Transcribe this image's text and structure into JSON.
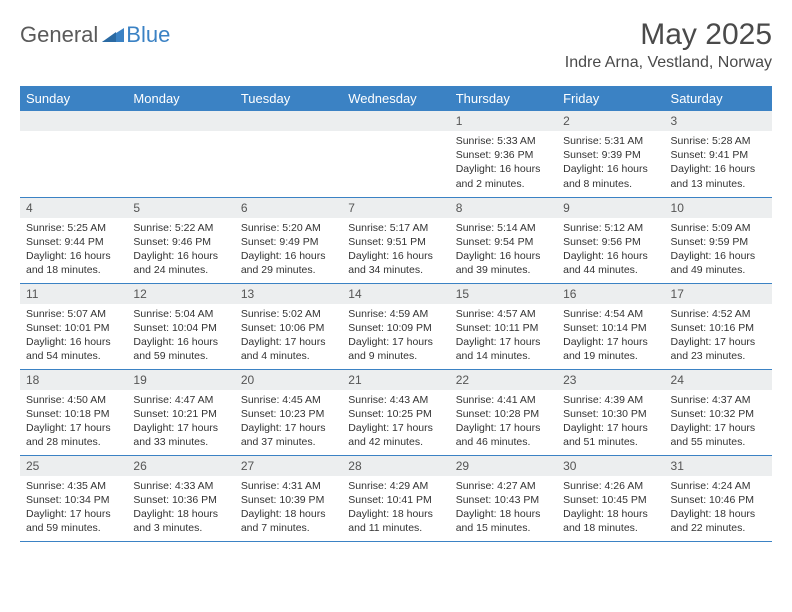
{
  "logo": {
    "part1": "General",
    "part2": "Blue"
  },
  "title": "May 2025",
  "location": "Indre Arna, Vestland, Norway",
  "colors": {
    "header_bg": "#3b82c4",
    "header_fg": "#ffffff",
    "daynum_bg": "#eceeef",
    "border": "#3b82c4",
    "logo_gray": "#5a5a5a",
    "logo_blue": "#3b82c4"
  },
  "weekdays": [
    "Sunday",
    "Monday",
    "Tuesday",
    "Wednesday",
    "Thursday",
    "Friday",
    "Saturday"
  ],
  "weeks": [
    [
      {
        "empty": true
      },
      {
        "empty": true
      },
      {
        "empty": true
      },
      {
        "empty": true
      },
      {
        "n": "1",
        "sr": "5:33 AM",
        "ss": "9:36 PM",
        "dl": "16 hours and 2 minutes."
      },
      {
        "n": "2",
        "sr": "5:31 AM",
        "ss": "9:39 PM",
        "dl": "16 hours and 8 minutes."
      },
      {
        "n": "3",
        "sr": "5:28 AM",
        "ss": "9:41 PM",
        "dl": "16 hours and 13 minutes."
      }
    ],
    [
      {
        "n": "4",
        "sr": "5:25 AM",
        "ss": "9:44 PM",
        "dl": "16 hours and 18 minutes."
      },
      {
        "n": "5",
        "sr": "5:22 AM",
        "ss": "9:46 PM",
        "dl": "16 hours and 24 minutes."
      },
      {
        "n": "6",
        "sr": "5:20 AM",
        "ss": "9:49 PM",
        "dl": "16 hours and 29 minutes."
      },
      {
        "n": "7",
        "sr": "5:17 AM",
        "ss": "9:51 PM",
        "dl": "16 hours and 34 minutes."
      },
      {
        "n": "8",
        "sr": "5:14 AM",
        "ss": "9:54 PM",
        "dl": "16 hours and 39 minutes."
      },
      {
        "n": "9",
        "sr": "5:12 AM",
        "ss": "9:56 PM",
        "dl": "16 hours and 44 minutes."
      },
      {
        "n": "10",
        "sr": "5:09 AM",
        "ss": "9:59 PM",
        "dl": "16 hours and 49 minutes."
      }
    ],
    [
      {
        "n": "11",
        "sr": "5:07 AM",
        "ss": "10:01 PM",
        "dl": "16 hours and 54 minutes."
      },
      {
        "n": "12",
        "sr": "5:04 AM",
        "ss": "10:04 PM",
        "dl": "16 hours and 59 minutes."
      },
      {
        "n": "13",
        "sr": "5:02 AM",
        "ss": "10:06 PM",
        "dl": "17 hours and 4 minutes."
      },
      {
        "n": "14",
        "sr": "4:59 AM",
        "ss": "10:09 PM",
        "dl": "17 hours and 9 minutes."
      },
      {
        "n": "15",
        "sr": "4:57 AM",
        "ss": "10:11 PM",
        "dl": "17 hours and 14 minutes."
      },
      {
        "n": "16",
        "sr": "4:54 AM",
        "ss": "10:14 PM",
        "dl": "17 hours and 19 minutes."
      },
      {
        "n": "17",
        "sr": "4:52 AM",
        "ss": "10:16 PM",
        "dl": "17 hours and 23 minutes."
      }
    ],
    [
      {
        "n": "18",
        "sr": "4:50 AM",
        "ss": "10:18 PM",
        "dl": "17 hours and 28 minutes."
      },
      {
        "n": "19",
        "sr": "4:47 AM",
        "ss": "10:21 PM",
        "dl": "17 hours and 33 minutes."
      },
      {
        "n": "20",
        "sr": "4:45 AM",
        "ss": "10:23 PM",
        "dl": "17 hours and 37 minutes."
      },
      {
        "n": "21",
        "sr": "4:43 AM",
        "ss": "10:25 PM",
        "dl": "17 hours and 42 minutes."
      },
      {
        "n": "22",
        "sr": "4:41 AM",
        "ss": "10:28 PM",
        "dl": "17 hours and 46 minutes."
      },
      {
        "n": "23",
        "sr": "4:39 AM",
        "ss": "10:30 PM",
        "dl": "17 hours and 51 minutes."
      },
      {
        "n": "24",
        "sr": "4:37 AM",
        "ss": "10:32 PM",
        "dl": "17 hours and 55 minutes."
      }
    ],
    [
      {
        "n": "25",
        "sr": "4:35 AM",
        "ss": "10:34 PM",
        "dl": "17 hours and 59 minutes."
      },
      {
        "n": "26",
        "sr": "4:33 AM",
        "ss": "10:36 PM",
        "dl": "18 hours and 3 minutes."
      },
      {
        "n": "27",
        "sr": "4:31 AM",
        "ss": "10:39 PM",
        "dl": "18 hours and 7 minutes."
      },
      {
        "n": "28",
        "sr": "4:29 AM",
        "ss": "10:41 PM",
        "dl": "18 hours and 11 minutes."
      },
      {
        "n": "29",
        "sr": "4:27 AM",
        "ss": "10:43 PM",
        "dl": "18 hours and 15 minutes."
      },
      {
        "n": "30",
        "sr": "4:26 AM",
        "ss": "10:45 PM",
        "dl": "18 hours and 18 minutes."
      },
      {
        "n": "31",
        "sr": "4:24 AM",
        "ss": "10:46 PM",
        "dl": "18 hours and 22 minutes."
      }
    ]
  ],
  "labels": {
    "sunrise": "Sunrise:",
    "sunset": "Sunset:",
    "daylight": "Daylight:"
  }
}
